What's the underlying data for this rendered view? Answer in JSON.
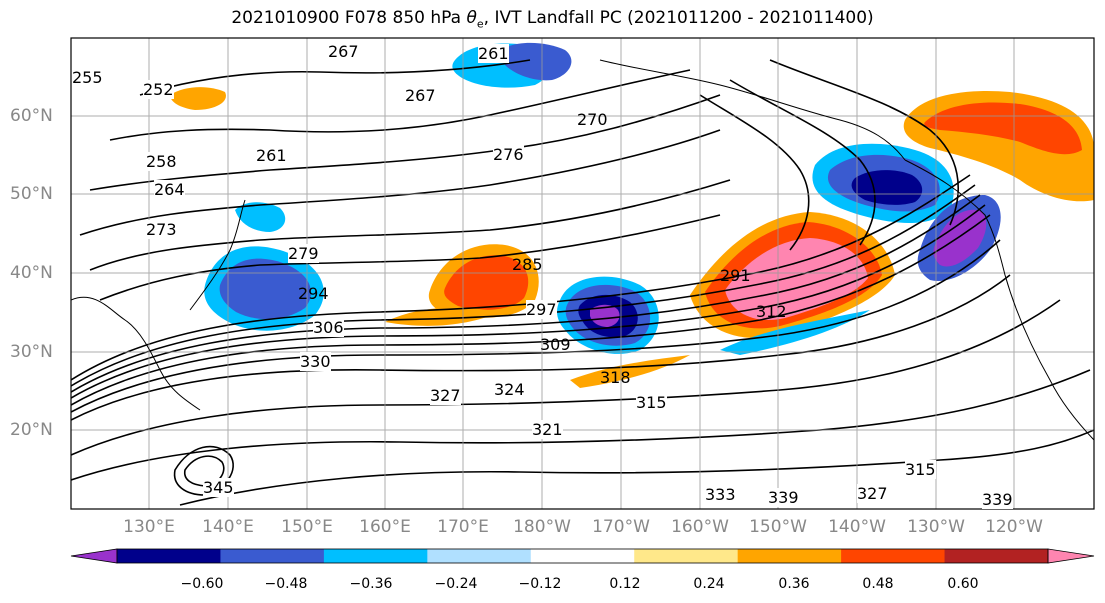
{
  "title_prefix": "2021010900 F078 850 hPa ",
  "title_symbol": "θ",
  "title_subscript": "e",
  "title_suffix": ", IVT Landfall PC (2021011200 - 2021011400)",
  "lat_labels": [
    "60°N",
    "50°N",
    "40°N",
    "30°N",
    "20°N"
  ],
  "lon_labels": [
    "130°E",
    "140°E",
    "150°E",
    "160°E",
    "170°E",
    "180°W",
    "170°W",
    "160°W",
    "150°W",
    "140°W",
    "130°W",
    "120°W"
  ],
  "contour_labels": [
    "267",
    "261",
    "267",
    "255",
    "252",
    "258",
    "261",
    "264",
    "273",
    "276",
    "279",
    "285",
    "291",
    "294",
    "297",
    "306",
    "309",
    "312",
    "318",
    "324",
    "327",
    "330",
    "321",
    "315",
    "315",
    "333",
    "339",
    "339",
    "327",
    "345",
    "270"
  ],
  "colorbar": {
    "colors": [
      "#9932cc",
      "#00008b",
      "#3a5bd0",
      "#00bfff",
      "#b0e0ff",
      "#ffffff",
      "#ffe88a",
      "#ffa500",
      "#ff4500",
      "#b22222",
      "#ff85b0"
    ],
    "tick_labels": [
      "−0.60",
      "−0.48",
      "−0.36",
      "−0.24",
      "−0.12",
      "0.12",
      "0.24",
      "0.36",
      "0.48",
      "0.60"
    ]
  }
}
